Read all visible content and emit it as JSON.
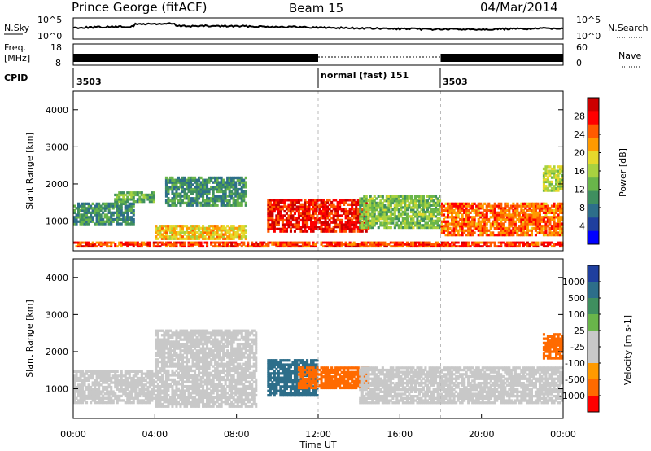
{
  "header": {
    "station": "Prince George (fitACF)",
    "beam": "Beam 15",
    "date": "04/Mar/2014"
  },
  "noise_panel": {
    "left_label": "N.Sky",
    "right_label": "N.Search",
    "left_ticks": [
      "10^5",
      "10^0"
    ],
    "right_ticks": [
      "10^5",
      "10^0"
    ]
  },
  "freq_panel": {
    "left_label_1": "Freq.",
    "left_label_2": "[MHz]",
    "left_ticks": [
      "18",
      "8"
    ],
    "right_label": "Nave",
    "right_ticks": [
      "60",
      "0"
    ]
  },
  "cpid": {
    "label": "CPID",
    "segments": [
      {
        "start_hour": 0,
        "text": "3503"
      },
      {
        "start_hour": 12,
        "text": "normal (fast) 151"
      },
      {
        "start_hour": 18,
        "text": "3503"
      }
    ]
  },
  "x_axis": {
    "label": "Time UT",
    "ticks": [
      "00:00",
      "04:00",
      "08:00",
      "12:00",
      "16:00",
      "20:00",
      "00:00"
    ]
  },
  "colors": {
    "power_scale": [
      "#0000ff",
      "#1f3f9f",
      "#2d6e8a",
      "#3f8f5f",
      "#69b54a",
      "#a8d240",
      "#e6d92b",
      "#ff9a00",
      "#ff5a00",
      "#ff0000",
      "#cc0000"
    ],
    "velocity_scale": [
      "#1f3f9f",
      "#2d6e8a",
      "#3f8f5f",
      "#69b54a",
      "#c8c8c8",
      "#c8c8c8",
      "#ff9a00",
      "#ff6a00",
      "#ff0000"
    ]
  },
  "chart_data": [
    {
      "type": "heatmap",
      "name": "power",
      "ylabel": "Slant Range [km]",
      "yticks": [
        "1000",
        "2000",
        "3000",
        "4000"
      ],
      "ylim": [
        200,
        4500
      ],
      "xlim": [
        0,
        24
      ],
      "colorbar": {
        "label": "Power [dB]",
        "ticks": [
          "4",
          "8",
          "12",
          "16",
          "20",
          "24",
          "28"
        ],
        "range": [
          0,
          32
        ]
      },
      "regions": [
        {
          "t0": 0,
          "t1": 24,
          "r0": 300,
          "r1": 450,
          "value": 26
        },
        {
          "t0": 0,
          "t1": 3,
          "r0": 900,
          "r1": 1500,
          "value": 10
        },
        {
          "t0": 2,
          "t1": 4,
          "r0": 1500,
          "r1": 1800,
          "value": 12
        },
        {
          "t0": 4,
          "t1": 8.5,
          "r0": 500,
          "r1": 900,
          "value": 20
        },
        {
          "t0": 4.5,
          "t1": 8.5,
          "r0": 1400,
          "r1": 2200,
          "value": 10
        },
        {
          "t0": 9.5,
          "t1": 14.5,
          "r0": 700,
          "r1": 1600,
          "value": 28
        },
        {
          "t0": 14,
          "t1": 18,
          "r0": 800,
          "r1": 1700,
          "value": 14
        },
        {
          "t0": 18,
          "t1": 24,
          "r0": 600,
          "r1": 1500,
          "value": 24
        },
        {
          "t0": 23,
          "t1": 24,
          "r0": 1800,
          "r1": 2500,
          "value": 16
        }
      ]
    },
    {
      "type": "heatmap",
      "name": "velocity",
      "ylabel": "Slant Range [km]",
      "yticks": [
        "1000",
        "2000",
        "3000",
        "4000"
      ],
      "ylim": [
        200,
        4500
      ],
      "xlim": [
        0,
        24
      ],
      "colorbar": {
        "label": "Velocity [m s-1]",
        "ticks": [
          "1000",
          "500",
          "100",
          "25",
          "-25",
          "-100",
          "-500",
          "-1000"
        ]
      },
      "regions": [
        {
          "t0": 0,
          "t1": 4,
          "r0": 600,
          "r1": 1500,
          "value": 0
        },
        {
          "t0": 4,
          "t1": 9,
          "r0": 500,
          "r1": 2600,
          "value": 0
        },
        {
          "t0": 9.5,
          "t1": 12,
          "r0": 800,
          "r1": 1800,
          "value": 300
        },
        {
          "t0": 11,
          "t1": 14.5,
          "r0": 1000,
          "r1": 1600,
          "value": -200
        },
        {
          "t0": 14,
          "t1": 24,
          "r0": 600,
          "r1": 1600,
          "value": 0
        },
        {
          "t0": 23,
          "t1": 24,
          "r0": 1800,
          "r1": 2500,
          "value": -300
        }
      ]
    }
  ]
}
